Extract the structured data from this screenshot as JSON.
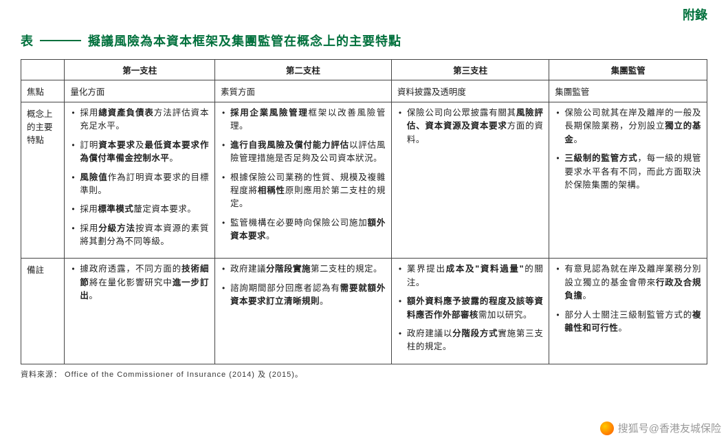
{
  "appendix": "附錄",
  "title": {
    "prefix": "表",
    "text": "擬議風險為本資本框架及集團監管在概念上的主要特點"
  },
  "headers": {
    "col1": "第一支柱",
    "col2": "第二支柱",
    "col3": "第三支柱",
    "col4": "集團監管"
  },
  "rows": {
    "focus": {
      "label": "焦點",
      "c1": "量化方面",
      "c2": "素質方面",
      "c3": "資料披露及透明度",
      "c4": "集團監管"
    },
    "concept": {
      "label": "概念上的主要特點",
      "c1": [
        {
          "pre": "採用",
          "bold": "總資產負債表",
          "post": "方法評估資本充足水平。"
        },
        {
          "pre": "訂明",
          "bold": "資本要求",
          "mid": "及",
          "bold2": "最低資本要求作為償付準備金控制水平",
          "post": "。"
        },
        {
          "bold": "風險值",
          "post": "作為訂明資本要求的目標準則。"
        },
        {
          "pre": "採用",
          "bold": "標準模式",
          "post": "釐定資本要求。"
        },
        {
          "pre": "採用",
          "bold": "分級方法",
          "post": "按資本資源的素質將其劃分為不同等級。"
        }
      ],
      "c2": [
        {
          "pre": "",
          "bold": "採用企業風險管理",
          "post": "框架以改善風險管理。"
        },
        {
          "pre": "",
          "bold": "進行自我風險及償付能力評估",
          "post": "以評估風險管理措施是否足夠及公司資本狀況。"
        },
        {
          "pre": "根據保險公司業務的性質、規模及複雜程度將",
          "bold": "相稱性",
          "post": "原則應用於第二支柱的規定。"
        },
        {
          "pre": "監管機構在必要時向保險公司施加",
          "bold": "額外資本要求",
          "post": "。"
        }
      ],
      "c3": [
        {
          "pre": "保險公司向公眾披露有關其",
          "bold": "風險評估、資本資源及資本要求",
          "post": "方面的資料。"
        }
      ],
      "c4": [
        {
          "pre": "保險公司就其在岸及離岸的一般及長期保險業務，分別設立",
          "bold": "獨立的基金",
          "post": "。"
        },
        {
          "bold": "三級制的監管方式",
          "post": "，每一級的規管要求水平各有不同，而此方面取決於保險集團的架構。"
        }
      ]
    },
    "remark": {
      "label": "備註",
      "c1": [
        {
          "pre": "據政府透露，不同方面的",
          "bold": "技術細節",
          "mid": "將在量化影響研究中",
          "bold2": "進一步訂出",
          "post": "。"
        }
      ],
      "c2": [
        {
          "pre": "政府建議",
          "bold": "分階段實施",
          "post": "第二支柱的規定。"
        },
        {
          "pre": "諮詢期間部分回應者認為有",
          "bold": "需要就額外資本要求訂立清晰規則",
          "post": "。"
        }
      ],
      "c3": [
        {
          "pre": "業界提出",
          "bold": "成本及\"資料過量\"",
          "post": "的關注。"
        },
        {
          "bold": "額外資料應予披露的程度及該等資料應否作外部審核",
          "post": "需加以研究。"
        },
        {
          "pre": "政府建議以",
          "bold": "分階段方式",
          "post": "實施第三支柱的規定。"
        }
      ],
      "c4": [
        {
          "pre": "有意見認為就在岸及離岸業務分別設立獨立的基金會帶來",
          "bold": "行政及合規負擔",
          "post": "。"
        },
        {
          "pre": "部分人士關注三級制監管方式的",
          "bold": "複雜性和可行性",
          "post": "。"
        }
      ]
    }
  },
  "source": "資料來源： Office of the Commissioner of Insurance (2014) 及 (2015)。",
  "watermark": "搜狐号@香港友城保险"
}
